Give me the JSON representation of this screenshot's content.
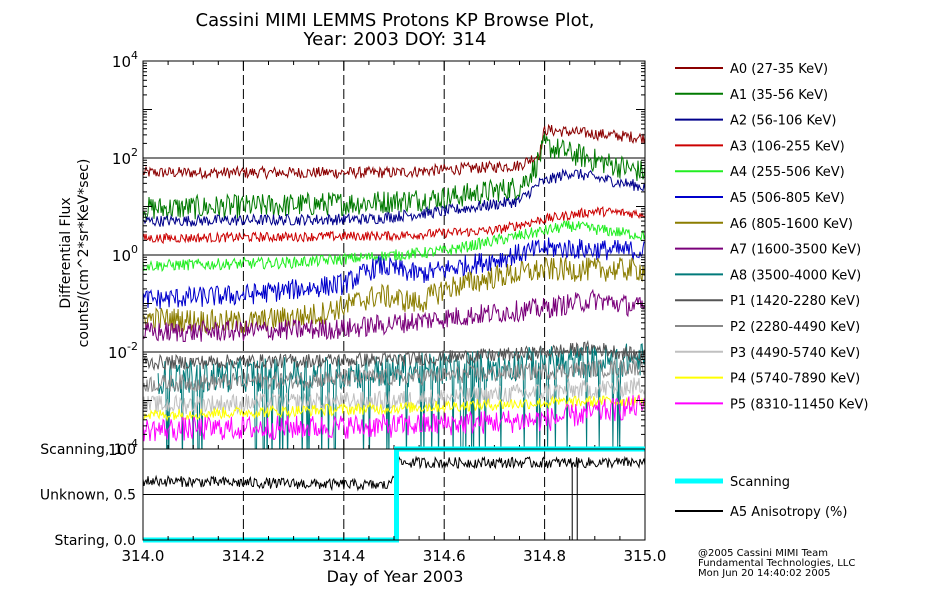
{
  "title_line1": "Cassini MIMI LEMMS Protons KP Browse Plot,",
  "title_line2": "Year: 2003 DOY: 314",
  "credit": [
    "@2005 Cassini MIMI Team",
    "Fundamental Technologies, LLC",
    "Mon Jun 20 14:40:02 2005"
  ],
  "chart_data": [
    {
      "type": "line",
      "panel": "flux",
      "ylabel_line1": "Differential Flux",
      "ylabel_line2": "counts/(cm^2*sr*KeV*sec)",
      "yscale": "log",
      "ylim": [
        0.0001,
        10000
      ],
      "yticks": [
        {
          "value": 0.0001,
          "base": "10",
          "exp": "-4"
        },
        {
          "value": 0.01,
          "base": "10",
          "exp": "-2"
        },
        {
          "value": 1,
          "base": "10",
          "exp": "0"
        },
        {
          "value": 100,
          "base": "10",
          "exp": "2"
        },
        {
          "value": 10000,
          "base": "10",
          "exp": "4"
        }
      ],
      "xlim": [
        314.0,
        315.0
      ],
      "hgrid": [
        0.01,
        1,
        100
      ],
      "vgrid": [
        314.2,
        314.4,
        314.6,
        314.8
      ],
      "legend_position": "right",
      "series": [
        {
          "name": "A0 (27-35 KeV)",
          "color": "#8b0000",
          "x": [
            314.0,
            314.5,
            314.75,
            314.79,
            314.8,
            315.0
          ],
          "y": [
            50,
            50,
            70,
            120,
            380,
            260
          ],
          "noise": 0.12,
          "start": 314.0
        },
        {
          "name": "A1 (35-56 KeV)",
          "color": "#007a00",
          "x": [
            314.0,
            314.2,
            314.45,
            314.6,
            314.75,
            314.78,
            314.8,
            314.9,
            315.0
          ],
          "y": [
            9,
            10,
            12,
            15,
            25,
            60,
            180,
            90,
            50
          ],
          "noise": 0.25,
          "start": 314.0
        },
        {
          "name": "A2 (56-106 KeV)",
          "color": "#00008b",
          "x": [
            314.0,
            314.45,
            314.6,
            314.75,
            314.79,
            314.85,
            315.0
          ],
          "y": [
            5,
            5.5,
            8,
            13,
            30,
            50,
            25
          ],
          "noise": 0.12,
          "start": 314.0
        },
        {
          "name": "A3 (106-255 KeV)",
          "color": "#cc0000",
          "x": [
            314.0,
            314.5,
            314.7,
            314.8,
            314.9,
            315.0
          ],
          "y": [
            2.2,
            2.5,
            3.2,
            5.5,
            8,
            7
          ],
          "noise": 0.1,
          "start": 314.0
        },
        {
          "name": "A4 (255-506 KeV)",
          "color": "#22ee22",
          "x": [
            314.0,
            314.3,
            314.45,
            314.6,
            314.75,
            314.85,
            315.0
          ],
          "y": [
            0.6,
            0.7,
            0.9,
            1.2,
            2.5,
            4,
            2.5
          ],
          "noise": 0.12,
          "start": 314.0
        },
        {
          "name": "A5 (506-805 KeV)",
          "color": "#0000cc",
          "x": [
            314.0,
            314.2,
            314.4,
            314.47,
            314.55,
            314.6,
            314.7,
            314.8,
            315.0
          ],
          "y": [
            0.12,
            0.15,
            0.25,
            0.6,
            0.4,
            0.5,
            0.8,
            1.4,
            1.2
          ],
          "noise": 0.22,
          "start": 314.0
        },
        {
          "name": "A6 (805-1600 KeV)",
          "color": "#8b7d00",
          "x": [
            314.0,
            314.2,
            314.35,
            314.47,
            314.55,
            314.6,
            314.7,
            314.8,
            315.0
          ],
          "y": [
            0.05,
            0.04,
            0.06,
            0.15,
            0.1,
            0.2,
            0.35,
            0.5,
            0.5
          ],
          "noise": 0.25,
          "start": 314.0
        },
        {
          "name": "A7 (1600-3500 KeV)",
          "color": "#7a007a",
          "x": [
            314.0,
            314.4,
            314.6,
            314.8,
            314.9,
            315.0
          ],
          "y": [
            0.025,
            0.03,
            0.05,
            0.08,
            0.12,
            0.08
          ],
          "noise": 0.22,
          "start": 314.0
        },
        {
          "name": "A8 (3500-4000 KeV)",
          "color": "#007a7a",
          "x": [
            314.03,
            314.5,
            314.8,
            315.0
          ],
          "y": [
            0.003,
            0.004,
            0.006,
            0.007
          ],
          "noise": 0.35,
          "start": 314.03,
          "spiky": true
        },
        {
          "name": "P1 (1420-2280 KeV)",
          "color": "#555555",
          "x": [
            314.0,
            314.5,
            314.75,
            314.9,
            315.0
          ],
          "y": [
            0.006,
            0.007,
            0.009,
            0.012,
            0.008
          ],
          "noise": 0.15,
          "start": 314.0
        },
        {
          "name": "P2 (2280-4490 KeV)",
          "color": "#888888",
          "x": [
            314.0,
            314.5,
            314.8,
            315.0
          ],
          "y": [
            0.0022,
            0.003,
            0.004,
            0.005
          ],
          "noise": 0.18,
          "start": 314.0
        },
        {
          "name": "P3 (4490-5740 KeV)",
          "color": "#c0c0c0",
          "x": [
            314.0,
            314.5,
            314.8,
            315.0
          ],
          "y": [
            0.0008,
            0.001,
            0.0015,
            0.002
          ],
          "noise": 0.2,
          "start": 314.0
        },
        {
          "name": "P4 (5740-7890 KeV)",
          "color": "#ffff00",
          "x": [
            314.0,
            314.5,
            314.8,
            315.0
          ],
          "y": [
            0.0005,
            0.0007,
            0.0009,
            0.001
          ],
          "noise": 0.12,
          "start": 314.0
        },
        {
          "name": "P5 (8310-11450 KeV)",
          "color": "#ff00ff",
          "x": [
            314.0,
            314.5,
            314.8,
            315.0
          ],
          "y": [
            0.00025,
            0.0003,
            0.0004,
            0.0008
          ],
          "noise": 0.25,
          "start": 314.0
        }
      ]
    },
    {
      "type": "line",
      "panel": "mode",
      "ylim": [
        0,
        1.0
      ],
      "yticks": [
        {
          "value": 0,
          "label": "Staring, 0.0"
        },
        {
          "value": 0.5,
          "label": "Unknown, 0.5"
        },
        {
          "value": 1.0,
          "label": "Scanning, 1.0"
        }
      ],
      "xlabel": "Day of Year 2003",
      "xlim": [
        314.0,
        315.0
      ],
      "xticks": [
        "314.0",
        "314.2",
        "314.4",
        "314.6",
        "314.8",
        "315.0"
      ],
      "xtick_values": [
        314.0,
        314.2,
        314.4,
        314.6,
        314.8,
        315.0
      ],
      "hgrid": [
        0.5
      ],
      "vgrid": [
        314.2,
        314.4,
        314.6,
        314.8
      ],
      "legend_position": "right",
      "series": [
        {
          "name": "Scanning",
          "color": "#00ffff",
          "x": [
            314.0,
            314.505,
            314.505,
            315.0
          ],
          "y": [
            0,
            0,
            1,
            1
          ],
          "noise": 0
        },
        {
          "name": "A5 Anisotropy (%)",
          "color": "#000000",
          "x": [
            314.0,
            314.49,
            314.51,
            315.0
          ],
          "y": [
            0.65,
            0.6,
            0.85,
            0.85
          ],
          "noise": 0.06,
          "start": 314.0,
          "lin": true
        }
      ]
    }
  ]
}
